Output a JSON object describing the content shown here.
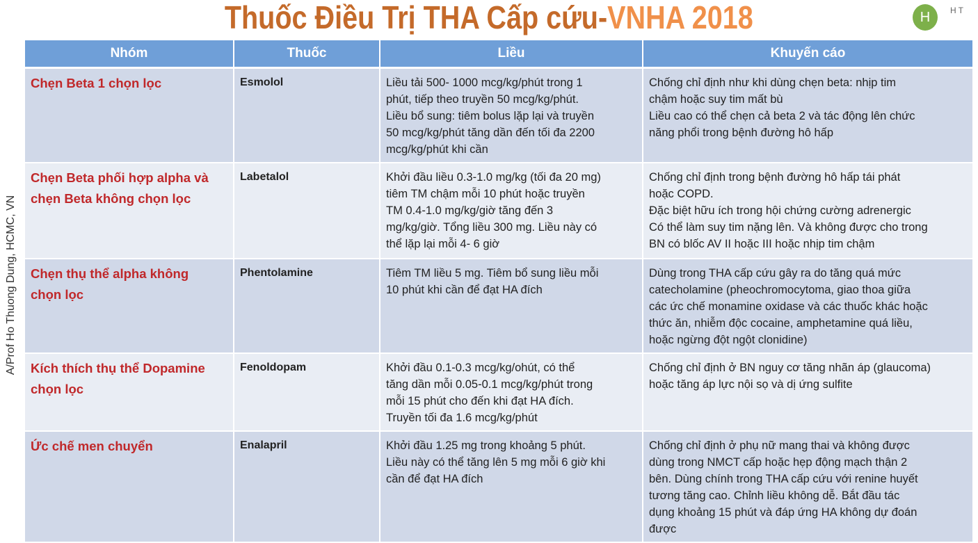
{
  "title": {
    "part1": "Thuốc Điều Trị THA Cấp cứu- ",
    "part2": "VNHA 2018"
  },
  "logo": {
    "letter": "H",
    "text": "HT"
  },
  "side_text": "A/Prof Ho Thuong Dung, HCMC, VN",
  "colors": {
    "header": "#6f9fd8",
    "group_text": "#c0282a",
    "title": "#c46a2a",
    "title_accent": "#f0904a"
  },
  "table": {
    "headers": [
      "Nhóm",
      "Thuốc",
      "Liều",
      "Khuyến cáo"
    ],
    "rows": [
      {
        "group": "Chẹn Beta 1 chọn lọc",
        "drug": "Esmolol",
        "dose": "Liều tải 500- 1000 mcg/kg/phút trong 1\nphút, tiếp theo truyền 50 mcg/kg/phút.\nLiều bổ sung: tiêm bolus lặp lại và truyền\n50 mcg/kg/phút tăng dần đến tối đa 2200\nmcg/kg/phút khi cần",
        "rec": "Chống chỉ định như khi dùng chẹn beta: nhịp tim\nchậm hoặc suy tim mất bù\nLiều cao có thể chẹn cả beta 2 và tác động lên chức\nnăng phổi trong bệnh đường hô hấp"
      },
      {
        "group": "Chẹn Beta phối hợp alpha và\nchẹn Beta không chọn lọc",
        "drug": "Labetalol",
        "dose": "Khởi đầu liều 0.3-1.0 mg/kg (tối đa 20 mg)\ntiêm TM chậm mỗi 10 phút hoặc truyền\nTM 0.4-1.0 mg/kg/giờ tăng đến 3\nmg/kg/giờ. Tổng liều 300 mg. Liều này có\nthể lặp  lại mỗi 4- 6  giờ",
        "rec": "Chống chỉ định trong bệnh đường hô hấp tái phát\nhoặc COPD.\nĐặc biệt hữu ích trong hội chứng cường adrenergic\nCó thể làm suy tim nặng lên. Và không được cho trong\nBN có blốc AV II hoặc III hoặc nhịp tim chậm"
      },
      {
        "group": "Chẹn thụ thể alpha không\nchọn lọc",
        "drug": "Phentolamine",
        "dose": "Tiêm TM liều 5 mg. Tiêm bổ sung liều mỗi\n10 phút khi cần để đạt HA đích",
        "rec": "Dùng trong THA cấp cứu gây ra do tăng quá mức\ncatecholamine (pheochromocytoma, giao thoa giữa\ncác ức chế monamine oxidase và các thuốc khác hoặc\nthức ăn, nhiễm độc cocaine, amphetamine quá liều,\nhoặc ngừng đột ngột clonidine)"
      },
      {
        "group": "Kích thích thụ thể Dopamine\nchọn lọc",
        "drug": "Fenoldopam",
        "dose": "Khởi đầu 0.1-0.3 mcg/kg/ohút, có thể\ntăng dần mỗi 0.05-0.1 mcg/kg/phút trong\nmỗi 15 phút cho đến khi đạt HA đích.\nTruyền tối đa 1.6 mcg/kg/phút",
        "rec": "Chống chỉ định ở BN nguy cơ tăng nhãn áp (glaucoma)\nhoặc tăng áp lực nội sọ và dị ứng sulfite"
      },
      {
        "group": "Ức chế men chuyển",
        "drug": "Enalapril",
        "dose": "Khởi đầu 1.25 mg trong khoảng 5 phút.\nLiều này có thể tăng lên 5 mg mỗi 6 giờ khi\ncần để đạt HA đích",
        "rec": "Chống chỉ định ở phụ nữ mang thai và không được\ndùng trong NMCT cấp hoặc hẹp động mạch thận 2\nbên. Dùng chính trong THA cấp cứu với renine huyết\ntương tăng cao. Chỉnh liều không dễ. Bắt đầu tác\ndụng khoảng 15 phút và đáp ứng HA không dự đoán\nđược"
      }
    ]
  }
}
